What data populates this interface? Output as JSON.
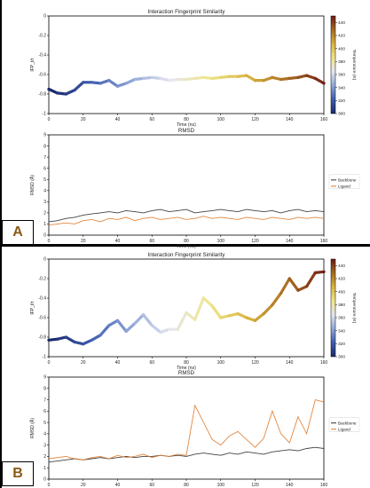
{
  "panels": [
    {
      "label": "A",
      "ifp_chart": {
        "type": "line",
        "title": "Interaction Fingerprint Similarity",
        "xlabel": "Time (ns)",
        "ylabel": "IFP_t/τ",
        "xlim": [
          0,
          160
        ],
        "ylim": [
          -1.0,
          0.0
        ],
        "xticks": [
          0,
          20,
          40,
          60,
          80,
          100,
          120,
          140,
          160
        ],
        "yticks": [
          -1.0,
          -0.8,
          -0.6,
          -0.4,
          -0.2,
          0.0
        ],
        "colorbar": {
          "label": "Temperature (K)",
          "min": 300,
          "max": 450,
          "ticks": [
            300,
            320,
            340,
            360,
            380,
            400,
            420,
            440
          ],
          "colors": [
            "#1b2a6b",
            "#3d5db0",
            "#8fa6d8",
            "#e6e6f0",
            "#f0e68a",
            "#d8b440",
            "#a86a22",
            "#6e1a14"
          ]
        },
        "x": [
          0,
          5,
          10,
          15,
          20,
          25,
          30,
          35,
          40,
          45,
          50,
          55,
          60,
          65,
          70,
          75,
          80,
          85,
          90,
          95,
          100,
          105,
          110,
          115,
          120,
          125,
          130,
          135,
          140,
          145,
          150,
          155,
          160
        ],
        "values": [
          -0.75,
          -0.79,
          -0.8,
          -0.76,
          -0.68,
          -0.68,
          -0.69,
          -0.66,
          -0.72,
          -0.69,
          -0.65,
          -0.64,
          -0.63,
          -0.64,
          -0.66,
          -0.65,
          -0.65,
          -0.64,
          -0.63,
          -0.64,
          -0.63,
          -0.62,
          -0.62,
          -0.61,
          -0.66,
          -0.66,
          -0.63,
          -0.65,
          -0.64,
          -0.63,
          -0.61,
          -0.64,
          -0.69
        ]
      },
      "rmsd_chart": {
        "type": "line",
        "title": "RMSD",
        "xlabel": "Time (ns)",
        "ylabel": "RMSD (Å)",
        "xlim": [
          0,
          160
        ],
        "ylim": [
          0,
          9
        ],
        "xticks": [
          0,
          20,
          40,
          60,
          80,
          100,
          120,
          140,
          160
        ],
        "yticks": [
          0,
          1,
          2,
          3,
          4,
          5,
          6,
          7,
          8,
          9
        ],
        "x": [
          0,
          5,
          10,
          15,
          20,
          25,
          30,
          35,
          40,
          45,
          50,
          55,
          60,
          65,
          70,
          75,
          80,
          85,
          90,
          95,
          100,
          105,
          110,
          115,
          120,
          125,
          130,
          135,
          140,
          145,
          150,
          155,
          160
        ],
        "legend_position": "right",
        "series": [
          {
            "name": "Backbone",
            "color": "#2f2f2f",
            "values": [
              1.2,
              1.3,
              1.5,
              1.6,
              1.8,
              1.9,
              2.0,
              2.1,
              2.0,
              2.2,
              2.1,
              2.0,
              2.2,
              2.3,
              2.1,
              2.2,
              2.3,
              2.0,
              2.1,
              2.2,
              2.3,
              2.2,
              2.1,
              2.3,
              2.2,
              2.1,
              2.2,
              2.0,
              2.2,
              2.3,
              2.1,
              2.2,
              2.1
            ]
          },
          {
            "name": "Ligand",
            "color": "#e07a2a",
            "values": [
              0.9,
              1.0,
              1.1,
              1.0,
              1.3,
              1.4,
              1.2,
              1.5,
              1.4,
              1.6,
              1.3,
              1.5,
              1.6,
              1.4,
              1.5,
              1.6,
              1.4,
              1.5,
              1.7,
              1.5,
              1.6,
              1.5,
              1.4,
              1.6,
              1.5,
              1.4,
              1.6,
              1.5,
              1.4,
              1.6,
              1.5,
              1.6,
              1.5
            ]
          }
        ]
      }
    },
    {
      "label": "B",
      "ifp_chart": {
        "type": "line",
        "title": "Interaction Fingerprint Similarity",
        "xlabel": "Time (ns)",
        "ylabel": "IFP_t/τ",
        "xlim": [
          0,
          160
        ],
        "ylim": [
          -1.0,
          0.0
        ],
        "xticks": [
          0,
          20,
          40,
          60,
          80,
          100,
          120,
          140,
          160
        ],
        "yticks": [
          -1.0,
          -0.8,
          -0.6,
          -0.4,
          -0.2,
          0.0
        ],
        "colorbar": {
          "label": "Temperature (K)",
          "min": 300,
          "max": 450,
          "ticks": [
            300,
            320,
            340,
            360,
            380,
            400,
            420,
            440
          ],
          "colors": [
            "#1b2a6b",
            "#3d5db0",
            "#8fa6d8",
            "#e6e6f0",
            "#f0e68a",
            "#d8b440",
            "#a86a22",
            "#6e1a14"
          ]
        },
        "x": [
          0,
          5,
          10,
          15,
          20,
          25,
          30,
          35,
          40,
          45,
          50,
          55,
          60,
          65,
          70,
          75,
          80,
          85,
          90,
          95,
          100,
          105,
          110,
          115,
          120,
          125,
          130,
          135,
          140,
          145,
          150,
          155,
          160
        ],
        "values": [
          -0.83,
          -0.82,
          -0.8,
          -0.85,
          -0.87,
          -0.83,
          -0.78,
          -0.68,
          -0.63,
          -0.74,
          -0.66,
          -0.57,
          -0.68,
          -0.75,
          -0.72,
          -0.72,
          -0.55,
          -0.62,
          -0.4,
          -0.48,
          -0.6,
          -0.58,
          -0.56,
          -0.6,
          -0.63,
          -0.56,
          -0.47,
          -0.35,
          -0.2,
          -0.32,
          -0.28,
          -0.14,
          -0.13
        ]
      },
      "rmsd_chart": {
        "type": "line",
        "title": "RMSD",
        "xlabel": "Time (ns)",
        "ylabel": "RMSD (Å)",
        "xlim": [
          0,
          160
        ],
        "ylim": [
          0,
          9
        ],
        "xticks": [
          0,
          20,
          40,
          60,
          80,
          100,
          120,
          140,
          160
        ],
        "yticks": [
          0,
          1,
          2,
          3,
          4,
          5,
          6,
          7,
          8,
          9
        ],
        "x": [
          0,
          5,
          10,
          15,
          20,
          25,
          30,
          35,
          40,
          45,
          50,
          55,
          60,
          65,
          70,
          75,
          80,
          85,
          90,
          95,
          100,
          105,
          110,
          115,
          120,
          125,
          130,
          135,
          140,
          145,
          150,
          155,
          160
        ],
        "legend_position": "right",
        "series": [
          {
            "name": "Backbone",
            "color": "#2f2f2f",
            "values": [
              1.5,
              1.6,
              1.7,
              1.8,
              1.7,
              1.8,
              1.9,
              1.8,
              1.9,
              2.0,
              1.9,
              2.0,
              2.0,
              2.1,
              2.0,
              2.1,
              2.0,
              2.2,
              2.3,
              2.2,
              2.1,
              2.3,
              2.2,
              2.4,
              2.3,
              2.2,
              2.4,
              2.5,
              2.6,
              2.5,
              2.7,
              2.8,
              2.7
            ]
          },
          {
            "name": "Ligand",
            "color": "#e07a2a",
            "values": [
              1.8,
              1.9,
              2.0,
              1.8,
              1.7,
              1.9,
              2.0,
              1.8,
              2.1,
              1.9,
              2.0,
              2.2,
              1.9,
              2.1,
              2.0,
              2.2,
              2.1,
              6.5,
              5.0,
              3.5,
              3.0,
              3.8,
              4.2,
              3.5,
              2.8,
              3.6,
              6.0,
              4.0,
              3.2,
              5.5,
              4.0,
              7.0,
              6.8
            ]
          }
        ]
      }
    }
  ]
}
